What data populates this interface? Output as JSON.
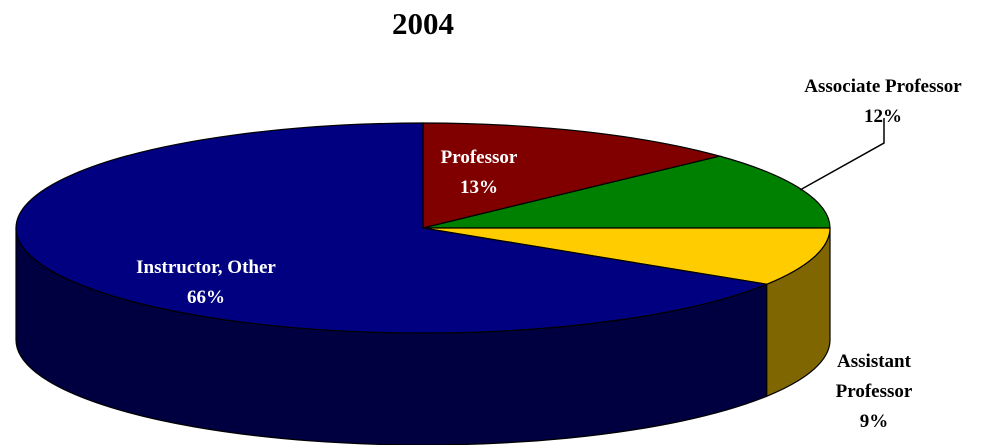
{
  "chart_data": {
    "type": "pie3d",
    "title": "2004",
    "categories": [
      "Professor",
      "Associate Professor",
      "Assistant Professor",
      "Instructor, Other"
    ],
    "values": [
      13,
      12,
      9,
      66
    ],
    "value_labels": [
      "13%",
      "12%",
      "9%",
      "66%"
    ],
    "colors": [
      "#800000",
      "#008000",
      "#ffcc00",
      "#000080"
    ]
  }
}
